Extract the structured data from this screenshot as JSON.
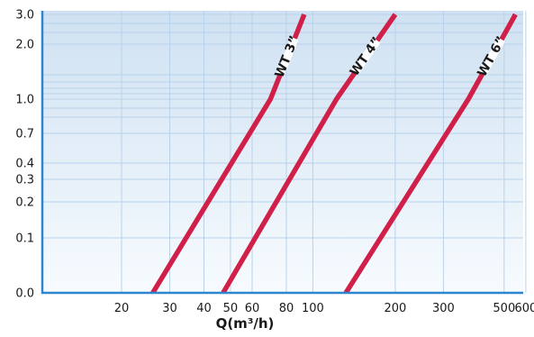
{
  "chart_data": {
    "type": "line",
    "xlabel": "Q(m³/h)",
    "x_scale": "log",
    "x_ticks": [
      20,
      30,
      40,
      50,
      60,
      80,
      100,
      200,
      300,
      500,
      600
    ],
    "y_ticks": [
      "0.0",
      "0.1",
      "0.2",
      "0.3",
      "0.4",
      "0.7",
      "1.0",
      "2.0",
      "3.0"
    ],
    "grid": true,
    "colors": {
      "line": "#d0204a",
      "grid": "#b8d2ea",
      "axis": "#2e86cf",
      "bg_top": "#cfe1f2",
      "bg_bottom": "#f7fbfe"
    },
    "series": [
      {
        "name": "WT 3”",
        "points": [
          [
            26,
            0.0
          ],
          [
            70,
            1.0
          ],
          [
            93,
            3.0
          ]
        ]
      },
      {
        "name": "WT 4”",
        "points": [
          [
            47,
            0.0
          ],
          [
            122,
            1.0
          ],
          [
            200,
            3.0
          ]
        ]
      },
      {
        "name": "WT 6”",
        "points": [
          [
            132,
            0.0
          ],
          [
            370,
            1.0
          ],
          [
            550,
            3.0
          ]
        ]
      }
    ]
  }
}
